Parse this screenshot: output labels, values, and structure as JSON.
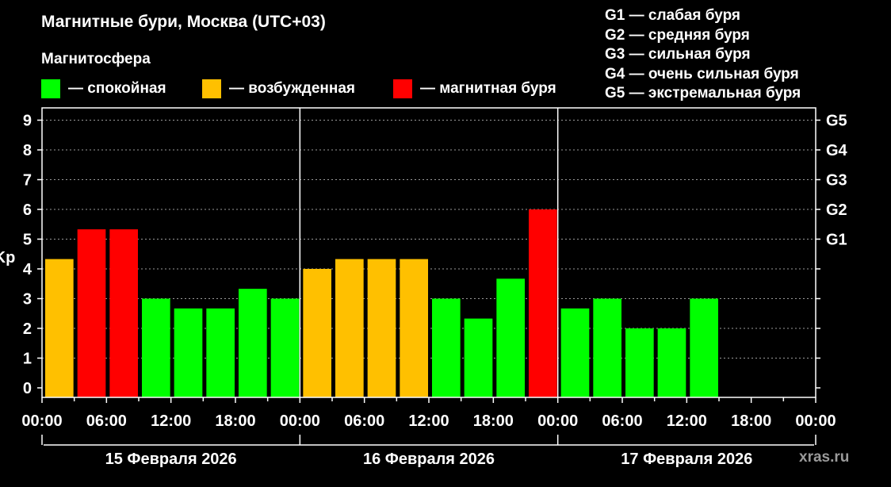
{
  "page": {
    "title": "Магнитные бури, Москва (UTC+03)",
    "subtitle": "Магнитосфера",
    "watermark": "xras.ru"
  },
  "legend": [
    {
      "label": "— спокойная",
      "color": "#00ff00"
    },
    {
      "label": "— возбужденная",
      "color": "#ffc000"
    },
    {
      "label": "— магнитная буря",
      "color": "#ff0000"
    }
  ],
  "g_legend": [
    "G1 — слабая буря",
    "G2 — средняя буря",
    "G3 — сильная буря",
    "G4 — очень сильная буря",
    "G5 — экстремальная буря"
  ],
  "colors": {
    "quiet": "#00ff00",
    "active": "#ffc000",
    "storm": "#ff0000",
    "background": "#000000",
    "foreground": "#ffffff"
  },
  "chart_data": {
    "type": "bar",
    "ylabel": "Kp",
    "ylim": [
      0,
      9
    ],
    "y_ticks": [
      "0",
      "1",
      "2",
      "3",
      "4",
      "5",
      "6",
      "7",
      "8",
      "9"
    ],
    "right_axis_labels": [
      {
        "value": 5,
        "label": "G1"
      },
      {
        "value": 6,
        "label": "G2"
      },
      {
        "value": 7,
        "label": "G3"
      },
      {
        "value": 8,
        "label": "G4"
      },
      {
        "value": 9,
        "label": "G5"
      }
    ],
    "x_tick_labels": [
      "00:00",
      "06:00",
      "12:00",
      "18:00",
      "00:00",
      "06:00",
      "12:00",
      "18:00",
      "00:00",
      "06:00",
      "12:00",
      "18:00",
      "00:00"
    ],
    "days": [
      "15 Февраля 2026",
      "16 Февраля 2026",
      "17 Февраля 2026"
    ],
    "grid": true,
    "interval_hours": 3,
    "values": [
      4.33,
      5.33,
      5.33,
      3,
      2.67,
      2.67,
      3.33,
      3,
      4,
      4.33,
      4.33,
      4.33,
      3,
      2.33,
      3.67,
      6,
      2.67,
      3,
      2,
      2,
      3
    ],
    "levels": [
      "active",
      "storm",
      "storm",
      "quiet",
      "quiet",
      "quiet",
      "quiet",
      "quiet",
      "active",
      "active",
      "active",
      "active",
      "quiet",
      "quiet",
      "quiet",
      "storm",
      "quiet",
      "quiet",
      "quiet",
      "quiet",
      "quiet"
    ]
  }
}
